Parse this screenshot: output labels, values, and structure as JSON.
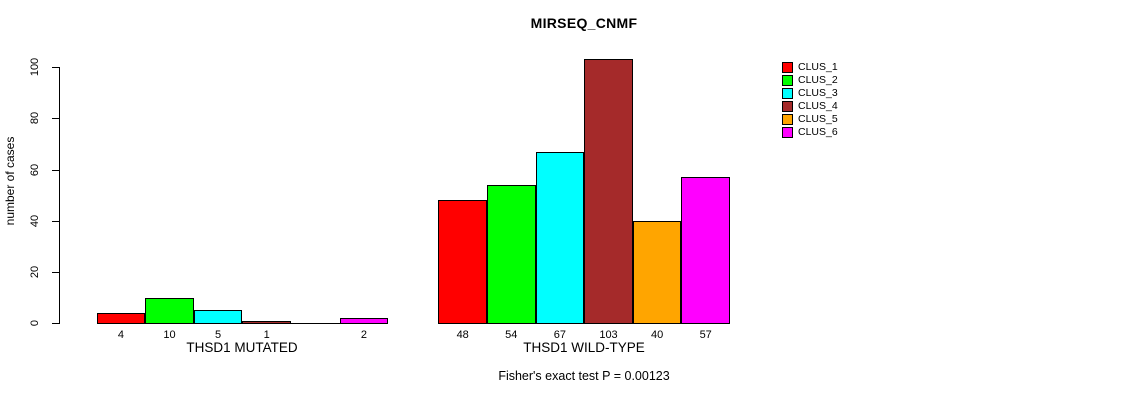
{
  "chart_data": {
    "type": "bar",
    "title": "MIRSEQ_CNMF",
    "ylabel": "number of cases",
    "ylim": [
      0,
      100
    ],
    "yticks": [
      0,
      20,
      40,
      60,
      80,
      100
    ],
    "grid": false,
    "legend_position": "right-outside",
    "categories": [
      "THSD1 MUTATED",
      "THSD1 WILD-TYPE"
    ],
    "series": [
      {
        "name": "CLUS_1",
        "color": "#FF0000",
        "values": [
          4,
          48
        ]
      },
      {
        "name": "CLUS_2",
        "color": "#00FF00",
        "values": [
          10,
          54
        ]
      },
      {
        "name": "CLUS_3",
        "color": "#00FFFF",
        "values": [
          5,
          67
        ]
      },
      {
        "name": "CLUS_4",
        "color": "#A52A2A",
        "values": [
          1,
          103
        ]
      },
      {
        "name": "CLUS_5",
        "color": "#FFA500",
        "values": [
          0,
          40
        ]
      },
      {
        "name": "CLUS_6",
        "color": "#FF00FF",
        "values": [
          2,
          57
        ]
      }
    ],
    "note": "Fisher's exact test P = 0.00123"
  }
}
